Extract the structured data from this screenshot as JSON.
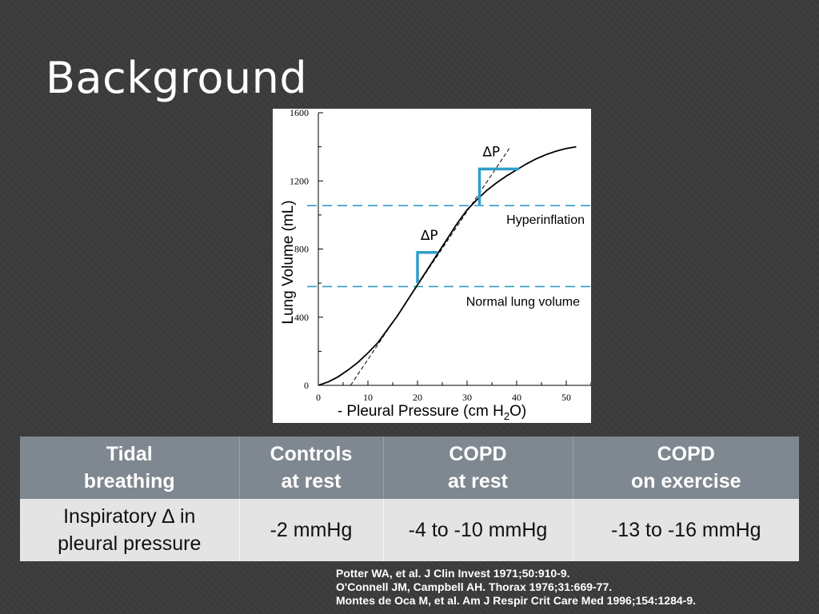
{
  "slide": {
    "title": "Background"
  },
  "chart_data": {
    "type": "line",
    "xlabel_prefix": "- Pleural Pressure (cm H",
    "xlabel_sub": "2",
    "xlabel_suffix": "O)",
    "ylabel": "Lung Volume (mL)",
    "xlim": [
      0,
      55
    ],
    "ylim": [
      0,
      1600
    ],
    "x_ticks": [
      "0",
      "10",
      "20",
      "30",
      "40",
      "50"
    ],
    "y_ticks": [
      "0",
      "400",
      "800",
      "1200",
      "1600"
    ],
    "series": [
      {
        "x": [
          0,
          2,
          4,
          6,
          8,
          10,
          12,
          14,
          16,
          18,
          20,
          22,
          24,
          26,
          28,
          30,
          32,
          34,
          36,
          38,
          40,
          42,
          44,
          46,
          48,
          50,
          52
        ],
        "y": [
          0,
          20,
          50,
          90,
          135,
          190,
          250,
          330,
          410,
          500,
          590,
          680,
          770,
          860,
          950,
          1030,
          1090,
          1145,
          1190,
          1230,
          1265,
          1300,
          1330,
          1355,
          1375,
          1390,
          1400
        ]
      }
    ],
    "tangent_lines": [
      {
        "x": [
          6.5,
          38.5
        ],
        "y": [
          0,
          1390
        ]
      }
    ],
    "reference_lines": [
      {
        "label": "Normal lung volume",
        "y": 580
      },
      {
        "label": "Hyperinflation",
        "y": 1055
      }
    ],
    "delta_annotations": [
      {
        "label": "∆P",
        "x0": 20,
        "y0": 600,
        "y1": 780,
        "x1": 24
      },
      {
        "label": "∆P",
        "x0": 32.5,
        "y0": 1060,
        "y1": 1270,
        "x1": 40.5
      }
    ],
    "colors": {
      "curve": "#000000",
      "reference": "#2f9ec9",
      "delta_marker": "#2f9ec9"
    }
  },
  "table": {
    "headers": [
      [
        "Tidal",
        "breathing"
      ],
      [
        "Controls",
        "at rest"
      ],
      [
        "COPD",
        "at rest"
      ],
      [
        "COPD",
        "on exercise"
      ]
    ],
    "row_label": [
      "Inspiratory ∆ in",
      "pleural pressure"
    ],
    "values": [
      "-2 mmHg",
      "-4 to -10 mmHg",
      "-13 to -16 mmHg"
    ]
  },
  "references": [
    "Potter WA, et al. J Clin Invest 1971;50:910-9.",
    "O'Connell JM, Campbell AH. Thorax 1976;31:669-77.",
    "Montes de Oca M, et al. Am J Respir Crit Care Med 1996;154:1284-9."
  ]
}
